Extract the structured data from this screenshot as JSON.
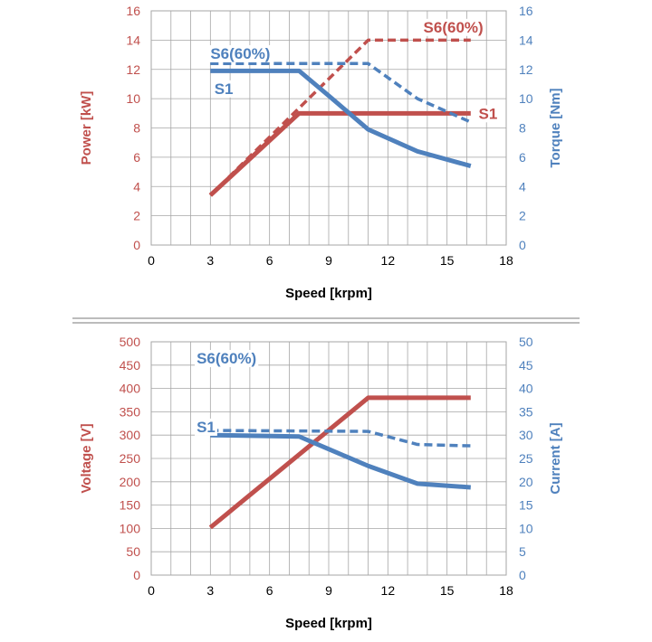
{
  "colors": {
    "red": "#C0504D",
    "blue": "#4F81BD",
    "grid": "#A6A6A6",
    "text": "#000000"
  },
  "chart_data": [
    {
      "type": "line",
      "xlabel": "Speed [krpm]",
      "ylabel": "Power [kW]",
      "y2label": "Torque [Nm]",
      "xlim": [
        0,
        18
      ],
      "ylim": [
        0,
        16
      ],
      "y2lim": [
        0,
        16
      ],
      "x_ticks": [
        0,
        3,
        6,
        9,
        12,
        15,
        18
      ],
      "y_ticks": [
        0,
        2,
        4,
        6,
        8,
        10,
        12,
        14,
        16
      ],
      "y2_ticks": [
        0,
        2,
        4,
        6,
        8,
        10,
        12,
        14,
        16
      ],
      "grid": true,
      "series": [
        {
          "name": "S1",
          "axis": "left",
          "color": "red",
          "style": "solid",
          "x": [
            3,
            7.5,
            16.2
          ],
          "y": [
            3.4,
            9.0,
            9.0
          ]
        },
        {
          "name": "S6(60%)",
          "axis": "left",
          "color": "red",
          "style": "dashed",
          "x": [
            3,
            11,
            16.2
          ],
          "y": [
            3.4,
            14.0,
            14.0
          ]
        },
        {
          "name": "S1",
          "axis": "right",
          "color": "blue",
          "style": "solid",
          "x": [
            3,
            7.5,
            9,
            11,
            13.5,
            16.2
          ],
          "y": [
            11.9,
            11.9,
            10.2,
            7.9,
            6.4,
            5.4
          ]
        },
        {
          "name": "S6(60%)",
          "axis": "right",
          "color": "blue",
          "style": "dashed",
          "x": [
            3,
            11,
            13.5,
            16.2
          ],
          "y": [
            12.4,
            12.4,
            10.0,
            8.4
          ]
        }
      ],
      "labels": [
        {
          "text": "S6(60%)",
          "color": "red",
          "x": 13.8,
          "y": 14.9
        },
        {
          "text": "S1",
          "color": "red",
          "x": 16.6,
          "y": 9.0
        },
        {
          "text": "S6(60%)",
          "color": "blue",
          "x": 3.0,
          "y": 13.1
        },
        {
          "text": "S1",
          "color": "blue",
          "x": 3.2,
          "y": 10.7
        }
      ]
    },
    {
      "type": "line",
      "xlabel": "Speed [krpm]",
      "ylabel": "Voltage [V]",
      "y2label": "Current [A]",
      "xlim": [
        0,
        18
      ],
      "ylim": [
        0,
        500
      ],
      "y2lim": [
        0,
        50
      ],
      "x_ticks": [
        0,
        3,
        6,
        9,
        12,
        15,
        18
      ],
      "y_ticks": [
        0,
        50,
        100,
        150,
        200,
        250,
        300,
        350,
        400,
        450,
        500
      ],
      "y2_ticks": [
        0,
        5,
        10,
        15,
        20,
        25,
        30,
        35,
        40,
        45,
        50
      ],
      "grid": true,
      "series": [
        {
          "name": "Voltage",
          "axis": "left",
          "color": "red",
          "style": "solid",
          "x": [
            3,
            11,
            16.2
          ],
          "y": [
            102,
            380,
            380
          ]
        },
        {
          "name": "S1",
          "axis": "right",
          "color": "blue",
          "style": "solid",
          "x": [
            3,
            7.5,
            9,
            11,
            13.5,
            16.2
          ],
          "y": [
            30.0,
            29.7,
            27.0,
            23.4,
            19.6,
            18.8
          ]
        },
        {
          "name": "S6(60%)",
          "axis": "right",
          "color": "blue",
          "style": "dashed",
          "x": [
            3,
            11,
            13.5,
            16.2
          ],
          "y": [
            31.0,
            30.8,
            28.0,
            27.7
          ]
        }
      ],
      "labels": [
        {
          "text": "S6(60%)",
          "color": "blue",
          "x": 2.3,
          "y": 465
        },
        {
          "text": "S1",
          "color": "blue",
          "x": 2.3,
          "y": 318
        }
      ]
    }
  ]
}
